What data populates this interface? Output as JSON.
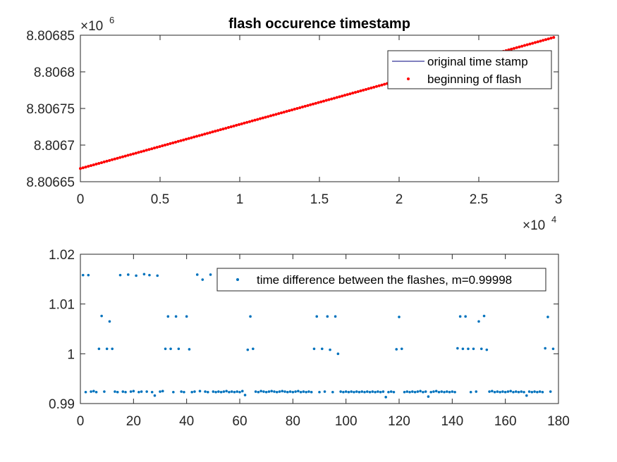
{
  "chart_data": [
    {
      "type": "line",
      "title": "flash occurence timestamp",
      "xlabel": "",
      "ylabel": "",
      "xlim": [
        0,
        30000
      ],
      "ylim": [
        8806650,
        8806850
      ],
      "x_exponent_label": "×10",
      "x_exponent_power": "4",
      "y_exponent_label": "×10",
      "y_exponent_power": "6",
      "x_ticks": [
        {
          "value": 0,
          "label": "0"
        },
        {
          "value": 5000,
          "label": "0.5"
        },
        {
          "value": 10000,
          "label": "1"
        },
        {
          "value": 15000,
          "label": "1.5"
        },
        {
          "value": 20000,
          "label": "2"
        },
        {
          "value": 25000,
          "label": "2.5"
        },
        {
          "value": 30000,
          "label": "3"
        }
      ],
      "y_ticks": [
        {
          "value": 8806650,
          "label": "8.80665"
        },
        {
          "value": 8806700,
          "label": "8.8067"
        },
        {
          "value": 8806750,
          "label": "8.80675"
        },
        {
          "value": 8806800,
          "label": "8.8068"
        },
        {
          "value": 8806850,
          "label": "8.80685"
        }
      ],
      "legend_position": "top-right",
      "series": [
        {
          "name": "original time stamp",
          "style": "line",
          "color": "#00007f",
          "x": [
            0,
            29700
          ],
          "y": [
            8806668,
            8806847
          ]
        },
        {
          "name": "beginning of flash",
          "style": "dots",
          "color": "#ff0000",
          "x_start": 0,
          "x_end": 29700,
          "y_start": 8806668,
          "y_end": 8806847,
          "count": 180
        }
      ]
    },
    {
      "type": "scatter",
      "title": "",
      "xlabel": "",
      "ylabel": "",
      "xlim": [
        0,
        180
      ],
      "ylim": [
        0.99,
        1.02
      ],
      "x_ticks": [
        {
          "value": 0,
          "label": "0"
        },
        {
          "value": 20,
          "label": "20"
        },
        {
          "value": 40,
          "label": "40"
        },
        {
          "value": 60,
          "label": "60"
        },
        {
          "value": 80,
          "label": "80"
        },
        {
          "value": 100,
          "label": "100"
        },
        {
          "value": 120,
          "label": "120"
        },
        {
          "value": 140,
          "label": "140"
        },
        {
          "value": 160,
          "label": "160"
        },
        {
          "value": 180,
          "label": "180"
        }
      ],
      "y_ticks": [
        {
          "value": 0.99,
          "label": "0.99"
        },
        {
          "value": 1.0,
          "label": "1"
        },
        {
          "value": 1.01,
          "label": "1.01"
        },
        {
          "value": 1.02,
          "label": "1.02"
        }
      ],
      "legend_position": "top-right",
      "series": [
        {
          "name": "time difference between the flashes, m=0.99998",
          "color": "#0072bd",
          "x": [
            1,
            2,
            3,
            4,
            5,
            6,
            7,
            8,
            9,
            10,
            11,
            12,
            13,
            14,
            15,
            16,
            17,
            18,
            19,
            20,
            21,
            22,
            23,
            24,
            25,
            26,
            27,
            28,
            29,
            30,
            31,
            32,
            33,
            34,
            35,
            36,
            37,
            38,
            39,
            40,
            41,
            42,
            43,
            44,
            45,
            46,
            47,
            48,
            49,
            50,
            51,
            52,
            53,
            54,
            55,
            56,
            57,
            58,
            59,
            60,
            61,
            62,
            63,
            64,
            65,
            66,
            67,
            68,
            69,
            70,
            71,
            72,
            73,
            74,
            75,
            76,
            77,
            78,
            79,
            80,
            81,
            82,
            83,
            84,
            85,
            86,
            87,
            88,
            89,
            90,
            91,
            92,
            93,
            94,
            95,
            96,
            97,
            98,
            99,
            100,
            101,
            102,
            103,
            104,
            105,
            106,
            107,
            108,
            109,
            110,
            111,
            112,
            113,
            114,
            115,
            116,
            117,
            118,
            119,
            120,
            121,
            122,
            123,
            124,
            125,
            126,
            127,
            128,
            129,
            130,
            131,
            132,
            133,
            134,
            135,
            136,
            137,
            138,
            139,
            140,
            141,
            142,
            143,
            144,
            145,
            146,
            147,
            148,
            149,
            150,
            151,
            152,
            153,
            154,
            155,
            156,
            157,
            158,
            159,
            160,
            161,
            162,
            163,
            164,
            165,
            166,
            167,
            168,
            169,
            170,
            171,
            172,
            173,
            174,
            175,
            176,
            177,
            178
          ],
          "y": [
            1.0158,
            0.9923,
            1.0158,
            0.9924,
            0.9925,
            0.9923,
            1.001,
            1.0076,
            0.9924,
            1.001,
            1.0065,
            1.001,
            0.9924,
            0.9923,
            1.0158,
            0.9924,
            0.9923,
            1.0159,
            0.9924,
            0.9925,
            1.0157,
            0.9923,
            0.9924,
            1.016,
            0.9924,
            1.0158,
            0.9923,
            0.9916,
            1.0157,
            0.9924,
            0.9925,
            1.001,
            1.0075,
            1.001,
            0.9923,
            1.0075,
            1.001,
            0.9924,
            0.9923,
            1.0075,
            1.0009,
            0.9923,
            0.9924,
            1.0159,
            0.9925,
            1.0149,
            0.9924,
            0.9923,
            1.0159,
            0.9924,
            0.9923,
            0.9924,
            0.9923,
            0.9924,
            0.9925,
            0.9923,
            0.9924,
            0.9923,
            0.9924,
            0.9923,
            0.9925,
            0.9917,
            1.0008,
            1.0075,
            1.001,
            0.9924,
            0.9923,
            0.9925,
            0.9924,
            0.9923,
            0.9924,
            0.9925,
            0.9924,
            0.9923,
            0.9924,
            0.9925,
            0.9924,
            0.9923,
            0.9924,
            0.9923,
            0.9924,
            0.9925,
            0.9923,
            0.9924,
            0.9923,
            0.9924,
            0.9923,
            1.001,
            1.0075,
            0.9923,
            1.001,
            0.9924,
            1.0075,
            1.0008,
            0.9923,
            1.0075,
            1.0,
            0.9924,
            0.9923,
            0.9924,
            0.9923,
            0.9924,
            0.9923,
            0.9924,
            0.9923,
            0.9924,
            0.9923,
            0.9924,
            0.9923,
            0.9924,
            0.9923,
            0.9924,
            0.9923,
            0.9924,
            0.9913,
            0.9923,
            0.9924,
            0.9923,
            1.0009,
            1.0074,
            1.001,
            0.9923,
            0.9924,
            0.9923,
            0.9924,
            0.9923,
            0.9924,
            0.9925,
            0.9923,
            0.9924,
            0.9914,
            0.9923,
            0.9924,
            0.9925,
            0.9923,
            0.9924,
            0.9923,
            0.9924,
            0.9923,
            0.9924,
            0.9923,
            1.0011,
            1.0075,
            1.001,
            1.0075,
            1.001,
            0.9923,
            1.001,
            0.9924,
            1.0065,
            1.001,
            1.0076,
            1.0008,
            0.9924,
            0.9925,
            0.9923,
            0.9924,
            0.9923,
            0.9924,
            0.9923,
            0.9924,
            0.9925,
            0.9923,
            0.9924,
            0.9923,
            0.9924,
            0.9923,
            0.9916,
            0.9924,
            0.9923,
            0.9924,
            0.9923,
            0.9924,
            0.9923,
            1.0011,
            1.0074,
            0.9924,
            1.001
          ]
        }
      ]
    }
  ]
}
